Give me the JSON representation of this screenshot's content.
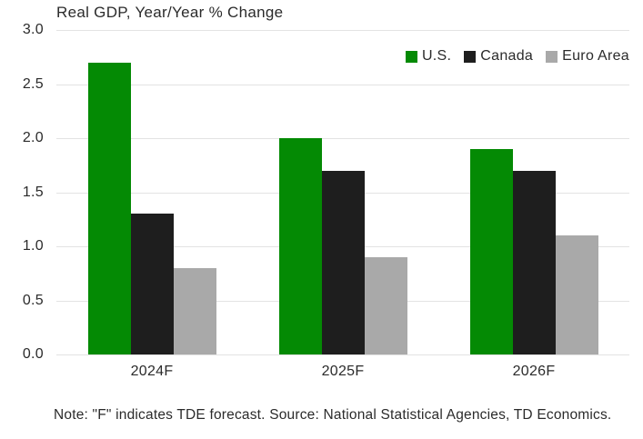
{
  "chart_data": {
    "type": "bar",
    "title": "Real GDP, Year/Year % Change",
    "categories": [
      "2024F",
      "2025F",
      "2026F"
    ],
    "series": [
      {
        "name": "U.S.",
        "color": "#048A04",
        "values": [
          2.7,
          2.0,
          1.9
        ]
      },
      {
        "name": "Canada",
        "color": "#1E1E1E",
        "values": [
          1.3,
          1.7,
          1.7
        ]
      },
      {
        "name": "Euro Area",
        "color": "#A9A9A9",
        "values": [
          0.8,
          0.9,
          1.1
        ]
      }
    ],
    "xlabel": "",
    "ylabel": "",
    "ylim": [
      0.0,
      3.0
    ],
    "ytick_step": 0.5,
    "ytick_labels": [
      "0.0",
      "0.5",
      "1.0",
      "1.5",
      "2.0",
      "2.5",
      "3.0"
    ],
    "grid": true,
    "legend_position": "top-right",
    "note": "Note: \"F\" indicates TDE forecast. Source: National Statistical Agencies, TD Economics."
  },
  "style": {
    "grid_color": "#E3E3E3",
    "text_color": "#2B2B2B",
    "background": "#FFFFFF"
  }
}
